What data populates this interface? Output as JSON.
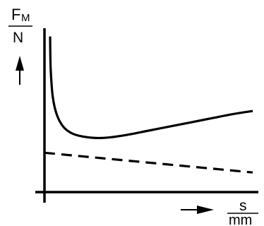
{
  "chart_data": {
    "type": "line",
    "title": "",
    "ylabel": {
      "symbol": "F",
      "subscript": "M",
      "unit": "N"
    },
    "xlabel": {
      "symbol": "s",
      "unit": "mm"
    },
    "ticks": "none",
    "grid": false,
    "legend": "none",
    "xlim": [
      0,
      10
    ],
    "ylim": [
      0,
      10
    ],
    "series": [
      {
        "style": "solid",
        "x": [
          0.27,
          0.3,
          0.4,
          0.6,
          0.9,
          1.3,
          1.8,
          2.5,
          3.2,
          4.0,
          5.0,
          6.0,
          7.0,
          8.0,
          9.0,
          10.0
        ],
        "y": [
          9.5,
          7.5,
          5.8,
          4.7,
          4.0,
          3.6,
          3.4,
          3.3,
          3.35,
          3.5,
          3.75,
          4.0,
          4.25,
          4.5,
          4.75,
          4.95
        ]
      },
      {
        "style": "dashed",
        "x": [
          0,
          10
        ],
        "y": [
          2.4,
          1.2
        ]
      }
    ],
    "colors": {
      "line": "#000000",
      "background": "#ffffff"
    }
  }
}
